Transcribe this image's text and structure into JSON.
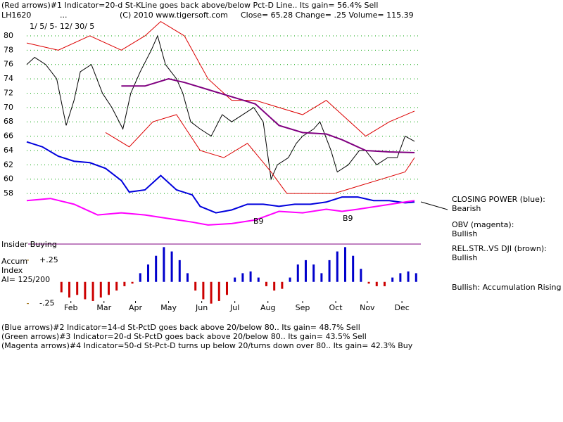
{
  "chart_data": [
    {
      "type": "line",
      "title": "(Red arrows)#1 Indicator=20-d St-KLine goes back above/below Pct-D Line.. Its gain= 56.4% Sell",
      "symbol": "LH1620",
      "ellipsis": "...",
      "copyright": "(C) 2010 www.tigersoft.com",
      "quote": "Close=  65.28  Change= .25 Volume= 115.39",
      "date_range": "1/ 5/ 5- 12/ 30/ 5",
      "xlim": [
        0,
        250
      ],
      "ylim": [
        53,
        82
      ],
      "xticks": [
        {
          "value": 28,
          "label": "Feb"
        },
        {
          "value": 49,
          "label": "Mar"
        },
        {
          "value": 69,
          "label": "Apr"
        },
        {
          "value": 90,
          "label": "May"
        },
        {
          "value": 111,
          "label": "Jun"
        },
        {
          "value": 132,
          "label": "Jul"
        },
        {
          "value": 153,
          "label": "Aug"
        },
        {
          "value": 175,
          "label": "Sep"
        },
        {
          "value": 196,
          "label": "Oct"
        },
        {
          "value": 216,
          "label": "Nov"
        },
        {
          "value": 238,
          "label": "Dec"
        }
      ],
      "yticks": [
        58,
        60,
        62,
        64,
        66,
        68,
        70,
        72,
        74,
        76,
        78,
        80
      ],
      "grid": true,
      "grid_color": "#00a000",
      "series": [
        {
          "color": "#000000",
          "x": [
            0,
            5,
            12,
            19,
            25,
            30,
            34,
            41,
            48,
            54,
            61,
            66,
            72,
            79,
            83,
            88,
            95,
            99,
            104,
            110,
            117,
            124,
            130,
            137,
            144,
            150,
            155,
            159,
            166,
            171,
            175,
            182,
            186,
            193,
            197,
            204,
            211,
            215,
            222,
            229,
            235,
            240,
            246
          ],
          "values": [
            76,
            77,
            76,
            74,
            67.5,
            71,
            75,
            76,
            72,
            70,
            67,
            72,
            75,
            78,
            80,
            76,
            74,
            72,
            68,
            67,
            66,
            69,
            68,
            69,
            70,
            68,
            60,
            62,
            63,
            65,
            66,
            67,
            68,
            64,
            61,
            62,
            64,
            64,
            62,
            63,
            63,
            66,
            65.28
          ]
        },
        {
          "color": "#dd0000",
          "x": [
            0,
            20,
            40,
            60,
            75,
            85,
            100,
            115,
            130,
            145,
            160,
            175,
            190,
            200,
            215,
            230,
            246
          ],
          "values": [
            79,
            78,
            80,
            78,
            80,
            82,
            80,
            74,
            71,
            71,
            70,
            69,
            71,
            69,
            66,
            68,
            69.5
          ]
        },
        {
          "color": "#dd0000",
          "x": [
            50,
            65,
            80,
            95,
            110,
            125,
            140,
            155,
            165,
            180,
            195,
            210,
            225,
            240,
            246
          ],
          "values": [
            66.5,
            64.5,
            68,
            69,
            64,
            63,
            65,
            61,
            58,
            58,
            58,
            59,
            60,
            61,
            63
          ]
        },
        {
          "color": "#800080",
          "x": [
            60,
            75,
            90,
            100,
            115,
            130,
            145,
            160,
            175,
            190,
            200,
            215,
            230,
            246
          ],
          "values": [
            73,
            73,
            74,
            73.5,
            72.5,
            71.5,
            70.5,
            67.5,
            66.5,
            66.3,
            65.5,
            64,
            63.8,
            63.7
          ]
        },
        {
          "color": "#0000dd",
          "x": [
            0,
            10,
            20,
            30,
            40,
            50,
            60,
            65,
            75,
            85,
            95,
            105,
            110,
            120,
            130,
            140,
            150,
            160,
            170,
            180,
            190,
            200,
            210,
            220,
            230,
            240,
            246
          ],
          "values": [
            65.2,
            64.5,
            63.2,
            62.5,
            62.3,
            61.5,
            59.8,
            58.2,
            58.5,
            60.5,
            58.5,
            57.8,
            56.2,
            55.3,
            55.7,
            56.5,
            56.5,
            56.2,
            56.5,
            56.5,
            56.8,
            57.5,
            57.5,
            57,
            57,
            56.7,
            56.8
          ]
        },
        {
          "color": "#ff00ff",
          "x": [
            0,
            15,
            30,
            45,
            60,
            75,
            90,
            105,
            115,
            130,
            145,
            160,
            175,
            190,
            200,
            210,
            225,
            240,
            246
          ],
          "values": [
            57,
            57.3,
            56.5,
            55,
            55.3,
            55,
            54.5,
            54,
            53.6,
            53.8,
            54.3,
            55.5,
            55.3,
            55.8,
            55.5,
            55.8,
            56.3,
            56.8,
            57
          ]
        }
      ],
      "annotations": [
        "CLOSING POWER (blue):",
        "Bearish",
        "OBV (magenta):",
        "Bullish",
        "REL.STR..VS DJI (brown):",
        "Bullish",
        "Bullish: Accumulation Rising",
        "B9",
        "B9"
      ],
      "notes": [
        "(Blue arrows)#2 Indicator=14-d St-PctD goes back above 20/below 80.. Its gain= 48.7% Sell",
        "(Green arrows)#3 Indicator=20-d St-PctD goes back above 20/below 80.. Its gain= 43.5% Sell",
        "(Magenta arrows)#4 Indicator=50-d St-Pct-D turns up below 20/turns down over 80.. Its gain= 42.3% Buy"
      ]
    },
    {
      "type": "bar",
      "labels": [
        "Insider Buying",
        "Accum",
        "Index",
        "AI= 125/200"
      ],
      "xlim": [
        0,
        250
      ],
      "ylim": [
        -0.35,
        0.5
      ],
      "yticks": [
        {
          "value": 0.25,
          "label": "+.25"
        },
        {
          "value": -0.25,
          "label": "-.25"
        }
      ],
      "colors": {
        "positive": "#0000cc",
        "negative": "#cc0000"
      },
      "x": [
        22,
        27,
        32,
        37,
        42,
        47,
        52,
        57,
        62,
        67,
        72,
        77,
        82,
        87,
        92,
        97,
        102,
        107,
        112,
        117,
        122,
        127,
        132,
        137,
        142,
        147,
        152,
        157,
        162,
        167,
        172,
        177,
        182,
        187,
        192,
        197,
        202,
        207,
        212,
        217,
        222,
        227,
        232,
        237,
        242,
        247
      ],
      "values": [
        -0.12,
        -0.18,
        -0.15,
        -0.2,
        -0.22,
        -0.18,
        -0.15,
        -0.1,
        -0.05,
        -0.02,
        0.1,
        0.2,
        0.3,
        0.4,
        0.35,
        0.25,
        0.1,
        -0.1,
        -0.2,
        -0.25,
        -0.22,
        -0.15,
        0.05,
        0.1,
        0.12,
        0.05,
        -0.05,
        -0.1,
        -0.08,
        0.05,
        0.2,
        0.25,
        0.2,
        0.1,
        0.25,
        0.35,
        0.4,
        0.3,
        0.15,
        -0.02,
        -0.05,
        -0.05,
        0.05,
        0.1,
        0.12,
        0.1
      ]
    }
  ]
}
